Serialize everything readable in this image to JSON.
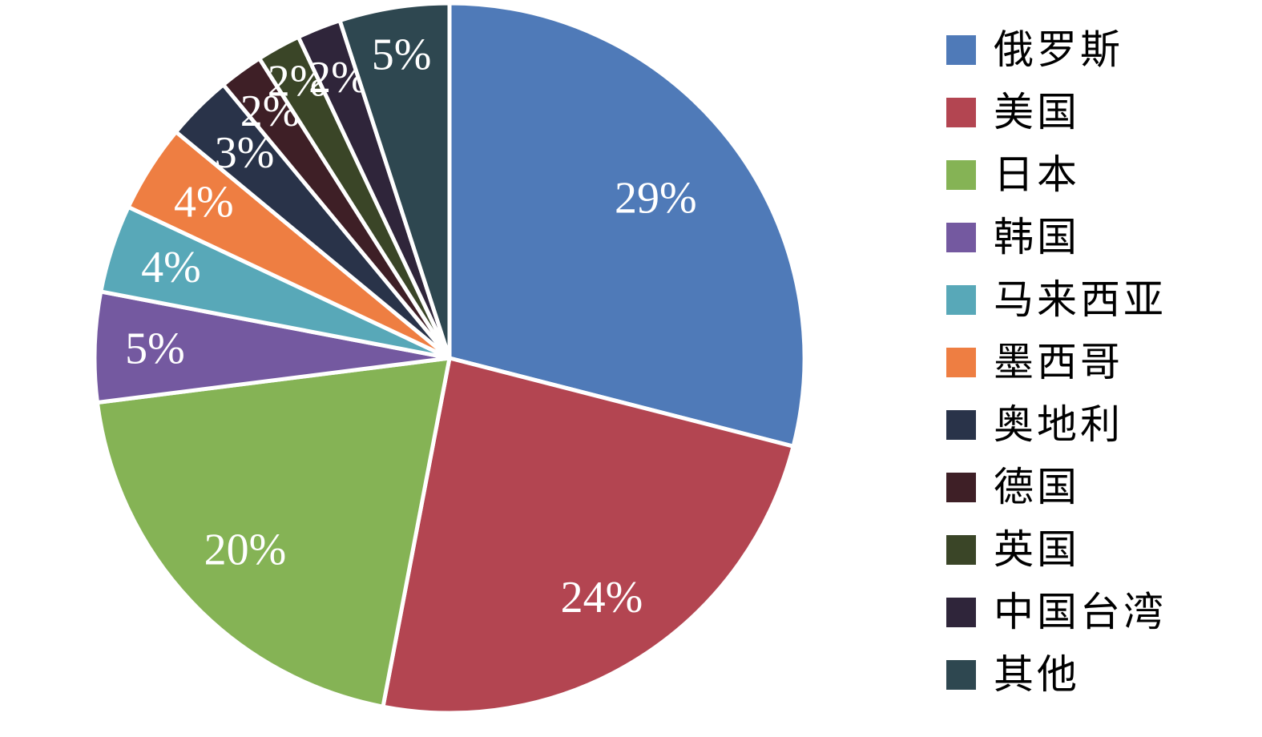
{
  "chart_data": {
    "type": "pie",
    "title": "",
    "direction": "clockwise",
    "start_angle_deg": 0,
    "legend_position": "right",
    "label_color": "#FFFFFF",
    "separator_color": "#FFFFFF",
    "background_color": "#FFFFFF",
    "legend_text_color": "#000000",
    "series": [
      {
        "id": "russia",
        "label": "俄罗斯",
        "value": 29,
        "display": "29%",
        "color": "#4F7AB8",
        "label_radius_fraction": 0.735
      },
      {
        "id": "usa",
        "label": "美国",
        "value": 24,
        "display": "24%",
        "color": "#B34551",
        "label_radius_fraction": 0.8
      },
      {
        "id": "japan",
        "label": "日本",
        "value": 20,
        "display": "20%",
        "color": "#85B355",
        "label_radius_fraction": 0.79
      },
      {
        "id": "south-korea",
        "label": "韩国",
        "value": 5,
        "display": "5%",
        "color": "#7459A0",
        "label_radius_fraction": 0.83
      },
      {
        "id": "malaysia",
        "label": "马来西亚",
        "value": 4,
        "display": "4%",
        "color": "#58A8B8",
        "label_radius_fraction": 0.825
      },
      {
        "id": "mexico",
        "label": "墨西哥",
        "value": 4,
        "display": "4%",
        "color": "#EE7E42",
        "label_radius_fraction": 0.82
      },
      {
        "id": "austria",
        "label": "奥地利",
        "value": 3,
        "display": "3%",
        "color": "#293349",
        "label_radius_fraction": 0.817
      },
      {
        "id": "germany",
        "label": "德国",
        "value": 2,
        "display": "2%",
        "color": "#3E1F26",
        "label_radius_fraction": 0.86
      },
      {
        "id": "uk",
        "label": "英国",
        "value": 2,
        "display": "2%",
        "color": "#3A4527",
        "label_radius_fraction": 0.89
      },
      {
        "id": "taiwan-china",
        "label": "中国台湾",
        "value": 2,
        "display": "2%",
        "color": "#2F253A",
        "label_radius_fraction": 0.85
      },
      {
        "id": "others",
        "label": "其他",
        "value": 5,
        "display": "5%",
        "color": "#2E4750",
        "label_radius_fraction": 0.865
      }
    ]
  }
}
